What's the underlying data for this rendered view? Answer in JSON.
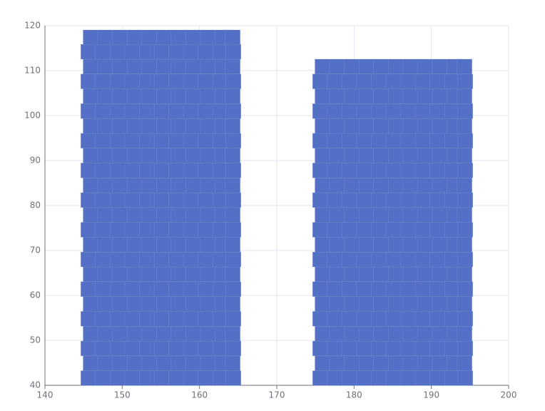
{
  "chart_data": {
    "type": "scatter",
    "grid": true,
    "xlim": [
      140,
      200
    ],
    "xticks": [
      140,
      150,
      160,
      170,
      180,
      190,
      200
    ],
    "ylim": [
      40,
      120
    ],
    "yticks": [
      40,
      50,
      60,
      70,
      80,
      90,
      100,
      110,
      120
    ],
    "series": [
      {
        "color": "#5470c6",
        "x": [
          145.6,
          147.5,
          149.4,
          151.3,
          153.2,
          155.1,
          157,
          158.9,
          160.8,
          162.7,
          164.4,
          145.9,
          147.8,
          149.7,
          151.6,
          153.5,
          155.4,
          157.3,
          159.2,
          161.1,
          163,
          164.3,
          145.6,
          147.5,
          149.4,
          151.3,
          153.2,
          155.1,
          157,
          158.9,
          160.8,
          162.7,
          164.4,
          145.9,
          147.8,
          149.7,
          151.6,
          153.5,
          155.4,
          157.3,
          159.2,
          161.1,
          163,
          164.3,
          145.6,
          147.5,
          149.4,
          151.3,
          153.2,
          155.1,
          157,
          158.9,
          160.8,
          162.7,
          164.4,
          145.9,
          147.8,
          149.7,
          151.6,
          153.5,
          155.4,
          157.3,
          159.2,
          161.1,
          163,
          164.3,
          145.6,
          147.5,
          149.4,
          151.3,
          153.2,
          155.1,
          157,
          158.9,
          160.8,
          162.7,
          164.4,
          145.9,
          147.8,
          149.7,
          151.6,
          153.5,
          155.4,
          157.3,
          159.2,
          161.1,
          163,
          164.3,
          145.6,
          147.5,
          149.4,
          151.3,
          153.2,
          155.1,
          157,
          158.9,
          160.8,
          162.7,
          164.4,
          145.9,
          147.8,
          149.7,
          151.6,
          153.5,
          155.4,
          157.3,
          159.2,
          161.1,
          163,
          164.3,
          145.6,
          147.5,
          149.4,
          151.3,
          153.2,
          155.1,
          157,
          158.9,
          160.8,
          162.7,
          164.4,
          145.9,
          147.8,
          149.7,
          151.6,
          153.5,
          155.4,
          157.3,
          159.2,
          161.1,
          163,
          164.3,
          145.6,
          147.5,
          149.4,
          151.3,
          153.2,
          155.1,
          157,
          158.9,
          160.8,
          162.7,
          164.4,
          145.9,
          147.8,
          149.7,
          151.6,
          153.5,
          155.4,
          157.3,
          159.2,
          161.1,
          163,
          164.3,
          145.6,
          147.5,
          149.4,
          151.3,
          153.2,
          155.1,
          157,
          158.9,
          160.8,
          162.7,
          164.4,
          145.9,
          147.8,
          149.7,
          151.6,
          153.5,
          155.4,
          157.3,
          159.2,
          161.1,
          163,
          164.3,
          145.6,
          147.5,
          149.4,
          151.3,
          153.2,
          155.1,
          157,
          158.9,
          160.8,
          162.7,
          164.4,
          145.9,
          147.8,
          149.7,
          151.6,
          153.5,
          155.4,
          157.3,
          159.2,
          161.1,
          163,
          164.3,
          145.6,
          147.5,
          149.4,
          151.3,
          153.2,
          155.1,
          157,
          158.9,
          160.8,
          162.7,
          164.4,
          145.9,
          147.8,
          149.7,
          151.6,
          153.5,
          155.4,
          157.3,
          159.2,
          161.1,
          163,
          164.3,
          145.6,
          147.5,
          149.4,
          151.3,
          153.2,
          155.1,
          157,
          158.9,
          160.8,
          162.7,
          164.4,
          145.9,
          147.8,
          149.7,
          151.6,
          153.5,
          155.4,
          157.3,
          159.2,
          161.1,
          163,
          164.3,
          145.6,
          147.5,
          149.4,
          151.3,
          153.2,
          155.1,
          157,
          158.9,
          160.8,
          162.7,
          164.4,
          145.9,
          147.8,
          149.7,
          151.6,
          153.5,
          155.4,
          157.3,
          159.2,
          161.1,
          163,
          164.3
        ],
        "values": [
          41.6,
          41.6,
          41.6,
          41.6,
          41.6,
          41.6,
          41.6,
          41.6,
          41.6,
          41.6,
          41.6,
          44.9,
          44.9,
          44.9,
          44.9,
          44.9,
          44.9,
          44.9,
          44.9,
          44.9,
          44.9,
          44.9,
          48.2,
          48.2,
          48.2,
          48.2,
          48.2,
          48.2,
          48.2,
          48.2,
          48.2,
          48.2,
          48.2,
          51.5,
          51.5,
          51.5,
          51.5,
          51.5,
          51.5,
          51.5,
          51.5,
          51.5,
          51.5,
          51.5,
          54.8,
          54.8,
          54.8,
          54.8,
          54.8,
          54.8,
          54.8,
          54.8,
          54.8,
          54.8,
          54.8,
          58.1,
          58.1,
          58.1,
          58.1,
          58.1,
          58.1,
          58.1,
          58.1,
          58.1,
          58.1,
          58.1,
          61.4,
          61.4,
          61.4,
          61.4,
          61.4,
          61.4,
          61.4,
          61.4,
          61.4,
          61.4,
          61.4,
          64.7,
          64.7,
          64.7,
          64.7,
          64.7,
          64.7,
          64.7,
          64.7,
          64.7,
          64.7,
          64.7,
          68,
          68,
          68,
          68,
          68,
          68,
          68,
          68,
          68,
          68,
          68,
          71.3,
          71.3,
          71.3,
          71.3,
          71.3,
          71.3,
          71.3,
          71.3,
          71.3,
          71.3,
          71.3,
          74.6,
          74.6,
          74.6,
          74.6,
          74.6,
          74.6,
          74.6,
          74.6,
          74.6,
          74.6,
          74.6,
          77.9,
          77.9,
          77.9,
          77.9,
          77.9,
          77.9,
          77.9,
          77.9,
          77.9,
          77.9,
          77.9,
          81.2,
          81.2,
          81.2,
          81.2,
          81.2,
          81.2,
          81.2,
          81.2,
          81.2,
          81.2,
          81.2,
          84.5,
          84.5,
          84.5,
          84.5,
          84.5,
          84.5,
          84.5,
          84.5,
          84.5,
          84.5,
          84.5,
          87.8,
          87.8,
          87.8,
          87.8,
          87.8,
          87.8,
          87.8,
          87.8,
          87.8,
          87.8,
          87.8,
          91.1,
          91.1,
          91.1,
          91.1,
          91.1,
          91.1,
          91.1,
          91.1,
          91.1,
          91.1,
          91.1,
          94.4,
          94.4,
          94.4,
          94.4,
          94.4,
          94.4,
          94.4,
          94.4,
          94.4,
          94.4,
          94.4,
          97.7,
          97.7,
          97.7,
          97.7,
          97.7,
          97.7,
          97.7,
          97.7,
          97.7,
          97.7,
          97.7,
          101,
          101,
          101,
          101,
          101,
          101,
          101,
          101,
          101,
          101,
          101,
          104.3,
          104.3,
          104.3,
          104.3,
          104.3,
          104.3,
          104.3,
          104.3,
          104.3,
          104.3,
          104.3,
          107.6,
          107.6,
          107.6,
          107.6,
          107.6,
          107.6,
          107.6,
          107.6,
          107.6,
          107.6,
          107.6,
          110.9,
          110.9,
          110.9,
          110.9,
          110.9,
          110.9,
          110.9,
          110.9,
          110.9,
          110.9,
          110.9,
          114.2,
          114.2,
          114.2,
          114.2,
          114.2,
          114.2,
          114.2,
          114.2,
          114.2,
          114.2,
          114.2,
          117.4,
          117.4,
          117.4,
          117.4,
          117.4,
          117.4,
          117.4,
          117.4,
          117.4,
          117.4,
          117.4
        ]
      },
      {
        "color": "#5470c6",
        "x": [
          175.6,
          177.5,
          179.4,
          181.3,
          183.2,
          185.1,
          187,
          188.9,
          190.8,
          192.7,
          194.4,
          175.9,
          177.8,
          179.7,
          181.6,
          183.5,
          185.4,
          187.3,
          189.2,
          191.1,
          193,
          194.3,
          175.6,
          177.5,
          179.4,
          181.3,
          183.2,
          185.1,
          187,
          188.9,
          190.8,
          192.7,
          194.4,
          175.9,
          177.8,
          179.7,
          181.6,
          183.5,
          185.4,
          187.3,
          189.2,
          191.1,
          193,
          194.3,
          175.6,
          177.5,
          179.4,
          181.3,
          183.2,
          185.1,
          187,
          188.9,
          190.8,
          192.7,
          194.4,
          175.9,
          177.8,
          179.7,
          181.6,
          183.5,
          185.4,
          187.3,
          189.2,
          191.1,
          193,
          194.3,
          175.6,
          177.5,
          179.4,
          181.3,
          183.2,
          185.1,
          187,
          188.9,
          190.8,
          192.7,
          194.4,
          175.9,
          177.8,
          179.7,
          181.6,
          183.5,
          185.4,
          187.3,
          189.2,
          191.1,
          193,
          194.3,
          175.6,
          177.5,
          179.4,
          181.3,
          183.2,
          185.1,
          187,
          188.9,
          190.8,
          192.7,
          194.4,
          175.9,
          177.8,
          179.7,
          181.6,
          183.5,
          185.4,
          187.3,
          189.2,
          191.1,
          193,
          194.3,
          175.6,
          177.5,
          179.4,
          181.3,
          183.2,
          185.1,
          187,
          188.9,
          190.8,
          192.7,
          194.4,
          175.9,
          177.8,
          179.7,
          181.6,
          183.5,
          185.4,
          187.3,
          189.2,
          191.1,
          193,
          194.3,
          175.6,
          177.5,
          179.4,
          181.3,
          183.2,
          185.1,
          187,
          188.9,
          190.8,
          192.7,
          194.4,
          175.9,
          177.8,
          179.7,
          181.6,
          183.5,
          185.4,
          187.3,
          189.2,
          191.1,
          193,
          194.3,
          175.6,
          177.5,
          179.4,
          181.3,
          183.2,
          185.1,
          187,
          188.9,
          190.8,
          192.7,
          194.4,
          175.9,
          177.8,
          179.7,
          181.6,
          183.5,
          185.4,
          187.3,
          189.2,
          191.1,
          193,
          194.3,
          175.6,
          177.5,
          179.4,
          181.3,
          183.2,
          185.1,
          187,
          188.9,
          190.8,
          192.7,
          194.4,
          175.9,
          177.8,
          179.7,
          181.6,
          183.5,
          185.4,
          187.3,
          189.2,
          191.1,
          193,
          194.3,
          175.6,
          177.5,
          179.4,
          181.3,
          183.2,
          185.1,
          187,
          188.9,
          190.8,
          192.7,
          194.4,
          175.9,
          177.8,
          179.7,
          181.6,
          183.5,
          185.4,
          187.3,
          189.2,
          191.1,
          193,
          194.3,
          175.6,
          177.5,
          179.4,
          181.3,
          183.2,
          185.1,
          187,
          188.9,
          190.8,
          192.7,
          194.4,
          175.9,
          177.8,
          179.7,
          181.6,
          183.5,
          185.4,
          187.3,
          189.2,
          191.1,
          193,
          194.3
        ],
        "values": [
          41.6,
          41.6,
          41.6,
          41.6,
          41.6,
          41.6,
          41.6,
          41.6,
          41.6,
          41.6,
          41.6,
          44.9,
          44.9,
          44.9,
          44.9,
          44.9,
          44.9,
          44.9,
          44.9,
          44.9,
          44.9,
          44.9,
          48.2,
          48.2,
          48.2,
          48.2,
          48.2,
          48.2,
          48.2,
          48.2,
          48.2,
          48.2,
          48.2,
          51.5,
          51.5,
          51.5,
          51.5,
          51.5,
          51.5,
          51.5,
          51.5,
          51.5,
          51.5,
          51.5,
          54.8,
          54.8,
          54.8,
          54.8,
          54.8,
          54.8,
          54.8,
          54.8,
          54.8,
          54.8,
          54.8,
          58.1,
          58.1,
          58.1,
          58.1,
          58.1,
          58.1,
          58.1,
          58.1,
          58.1,
          58.1,
          58.1,
          61.4,
          61.4,
          61.4,
          61.4,
          61.4,
          61.4,
          61.4,
          61.4,
          61.4,
          61.4,
          61.4,
          64.7,
          64.7,
          64.7,
          64.7,
          64.7,
          64.7,
          64.7,
          64.7,
          64.7,
          64.7,
          64.7,
          68,
          68,
          68,
          68,
          68,
          68,
          68,
          68,
          68,
          68,
          68,
          71.3,
          71.3,
          71.3,
          71.3,
          71.3,
          71.3,
          71.3,
          71.3,
          71.3,
          71.3,
          71.3,
          74.6,
          74.6,
          74.6,
          74.6,
          74.6,
          74.6,
          74.6,
          74.6,
          74.6,
          74.6,
          74.6,
          77.9,
          77.9,
          77.9,
          77.9,
          77.9,
          77.9,
          77.9,
          77.9,
          77.9,
          77.9,
          77.9,
          81.2,
          81.2,
          81.2,
          81.2,
          81.2,
          81.2,
          81.2,
          81.2,
          81.2,
          81.2,
          81.2,
          84.5,
          84.5,
          84.5,
          84.5,
          84.5,
          84.5,
          84.5,
          84.5,
          84.5,
          84.5,
          84.5,
          87.8,
          87.8,
          87.8,
          87.8,
          87.8,
          87.8,
          87.8,
          87.8,
          87.8,
          87.8,
          87.8,
          91.1,
          91.1,
          91.1,
          91.1,
          91.1,
          91.1,
          91.1,
          91.1,
          91.1,
          91.1,
          91.1,
          94.4,
          94.4,
          94.4,
          94.4,
          94.4,
          94.4,
          94.4,
          94.4,
          94.4,
          94.4,
          94.4,
          97.7,
          97.7,
          97.7,
          97.7,
          97.7,
          97.7,
          97.7,
          97.7,
          97.7,
          97.7,
          97.7,
          101,
          101,
          101,
          101,
          101,
          101,
          101,
          101,
          101,
          101,
          101,
          104.3,
          104.3,
          104.3,
          104.3,
          104.3,
          104.3,
          104.3,
          104.3,
          104.3,
          104.3,
          104.3,
          107.6,
          107.6,
          107.6,
          107.6,
          107.6,
          107.6,
          107.6,
          107.6,
          107.6,
          107.6,
          107.6,
          110.9,
          110.9,
          110.9,
          110.9,
          110.9,
          110.9,
          110.9,
          110.9,
          110.9,
          110.9,
          110.9
        ]
      }
    ]
  }
}
